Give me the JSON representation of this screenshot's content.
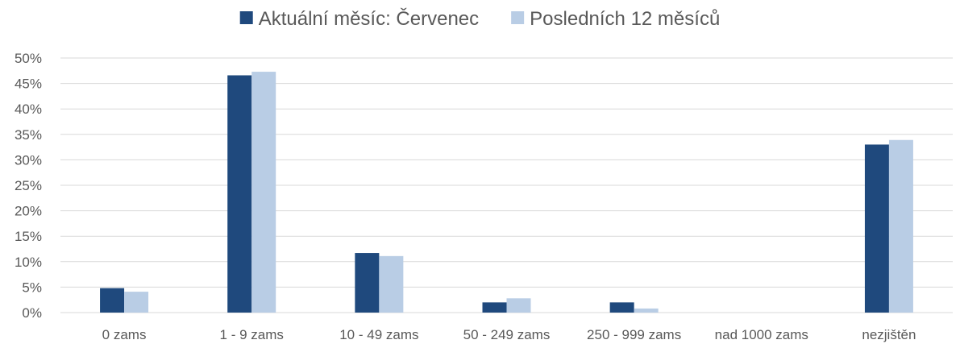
{
  "chart_data": {
    "type": "bar",
    "categories": [
      "0 zams",
      "1 - 9 zams",
      "10 - 49 zams",
      "50 - 249 zams",
      "250 - 999 zams",
      "nad 1000 zams",
      "nezjištěn"
    ],
    "series": [
      {
        "name": "Aktuální měsíc: Červenec",
        "color": "#1F497D",
        "values": [
          4.8,
          46.6,
          11.7,
          2.0,
          2.0,
          0.0,
          33.0
        ]
      },
      {
        "name": "Posledních 12 měsíců",
        "color": "#B9CDE5",
        "values": [
          4.1,
          47.3,
          11.1,
          2.8,
          0.8,
          0.0,
          33.9
        ]
      }
    ],
    "ylim": [
      0,
      50
    ],
    "yticks": [
      0,
      5,
      10,
      15,
      20,
      25,
      30,
      35,
      40,
      45,
      50
    ],
    "ytick_labels": [
      "0%",
      "5%",
      "10%",
      "15%",
      "20%",
      "25%",
      "30%",
      "35%",
      "40%",
      "45%",
      "50%"
    ],
    "grid": true,
    "legend_position": "top-center",
    "grid_color": "#D9D9D9",
    "text_color": "#595959"
  }
}
